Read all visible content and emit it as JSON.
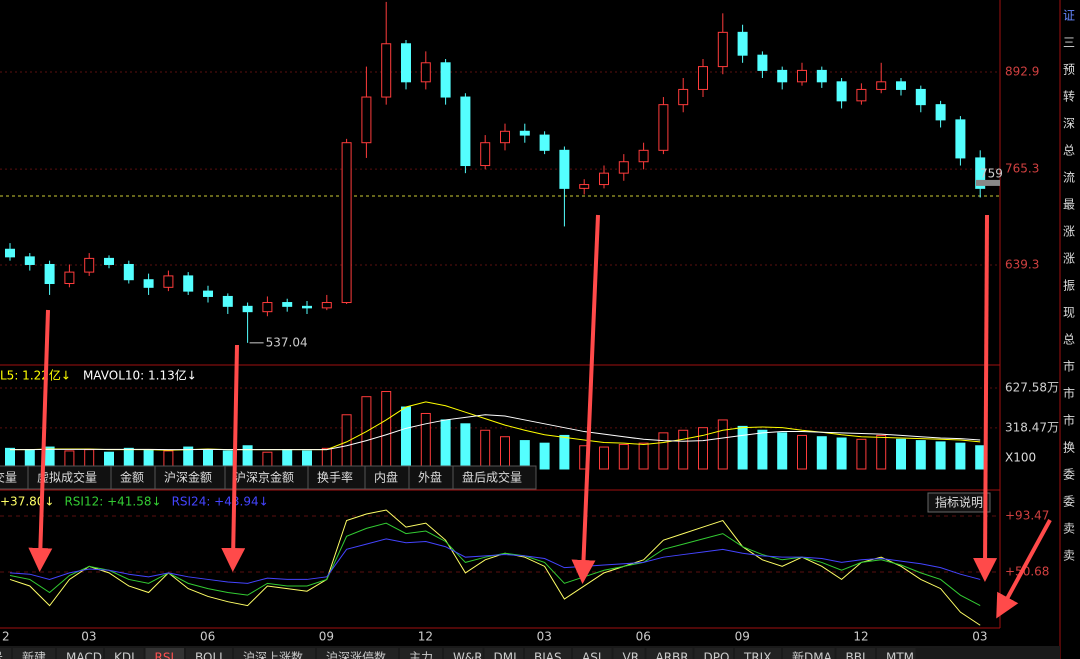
{
  "chart_data": [
    {
      "type": "candlestick",
      "open": [
        660,
        650,
        640,
        615,
        630,
        648,
        640,
        620,
        610,
        625,
        605,
        598,
        585,
        578,
        590,
        585,
        583,
        590,
        800,
        860,
        930,
        880,
        905,
        860,
        770,
        800,
        815,
        810,
        790,
        740,
        745,
        760,
        775,
        790,
        850,
        870,
        900,
        945,
        915,
        895,
        880,
        895,
        880,
        855,
        870,
        880,
        870,
        850,
        830,
        780
      ],
      "high": [
        668,
        655,
        645,
        640,
        655,
        652,
        645,
        628,
        632,
        630,
        612,
        602,
        590,
        598,
        595,
        592,
        600,
        805,
        900,
        985,
        935,
        920,
        910,
        865,
        810,
        825,
        825,
        815,
        795,
        752,
        770,
        785,
        800,
        860,
        885,
        910,
        970,
        955,
        920,
        900,
        905,
        900,
        885,
        878,
        905,
        885,
        875,
        855,
        835,
        790
      ],
      "low": [
        645,
        632,
        600,
        610,
        625,
        635,
        615,
        600,
        605,
        600,
        590,
        575,
        537.04,
        572,
        578,
        575,
        580,
        588,
        780,
        850,
        870,
        870,
        850,
        760,
        765,
        790,
        800,
        785,
        690,
        732,
        740,
        750,
        765,
        785,
        840,
        860,
        890,
        905,
        885,
        870,
        875,
        872,
        845,
        850,
        865,
        862,
        840,
        820,
        770,
        728
      ],
      "close": [
        650,
        640,
        615,
        630,
        648,
        640,
        620,
        610,
        625,
        605,
        598,
        585,
        578,
        590,
        585,
        583,
        590,
        800,
        860,
        930,
        880,
        905,
        860,
        770,
        800,
        815,
        810,
        790,
        740,
        745,
        760,
        775,
        790,
        850,
        870,
        900,
        945,
        915,
        895,
        880,
        895,
        880,
        855,
        870,
        880,
        870,
        850,
        830,
        780,
        740
      ],
      "ylim": [
        514.5,
        987.5
      ],
      "yticks": [
        892.9,
        765.3,
        639.3
      ],
      "reference": 730,
      "last_price": 759,
      "up_color": "#ff3c3c",
      "down_color": "#54ffff"
    },
    {
      "type": "bar",
      "values": [
        160,
        150,
        170,
        140,
        150,
        130,
        160,
        150,
        140,
        170,
        150,
        140,
        180,
        130,
        150,
        140,
        160,
        420,
        560,
        600,
        480,
        430,
        380,
        350,
        300,
        250,
        220,
        200,
        260,
        180,
        170,
        190,
        200,
        280,
        300,
        320,
        380,
        330,
        300,
        280,
        260,
        250,
        240,
        230,
        260,
        230,
        220,
        210,
        200,
        180
      ],
      "series": [
        {
          "legend": "L5: 1.22亿↓",
          "color": "#ffff00",
          "values": [
            150,
            150,
            155,
            155,
            155,
            150,
            150,
            150,
            145,
            150,
            155,
            150,
            150,
            150,
            150,
            150,
            150,
            210,
            290,
            380,
            480,
            520,
            490,
            440,
            390,
            340,
            300,
            265,
            245,
            225,
            205,
            200,
            190,
            205,
            230,
            260,
            300,
            320,
            325,
            320,
            300,
            285,
            265,
            250,
            245,
            240,
            235,
            230,
            225,
            210
          ]
        },
        {
          "legend": "MAVOL10: 1.13亿↓",
          "color": "#ffffff",
          "values": [
            150,
            150,
            152,
            152,
            152,
            152,
            152,
            152,
            150,
            150,
            152,
            150,
            150,
            150,
            150,
            150,
            150,
            180,
            220,
            265,
            315,
            350,
            380,
            400,
            420,
            410,
            380,
            350,
            320,
            290,
            270,
            250,
            230,
            220,
            215,
            220,
            240,
            260,
            280,
            290,
            290,
            285,
            280,
            275,
            270,
            260,
            250,
            240,
            235,
            225
          ]
        }
      ],
      "ylim": [
        0,
        766.7
      ],
      "yticks": [
        {
          "value": 627.58,
          "label": "627.58万"
        },
        {
          "value": 318.47,
          "label": "318.47万"
        }
      ],
      "unit": "X100"
    },
    {
      "type": "line",
      "categories": [
        "2",
        null,
        null,
        null,
        "03",
        null,
        null,
        null,
        null,
        null,
        "06",
        null,
        null,
        null,
        null,
        null,
        "09",
        null,
        null,
        null,
        null,
        "12",
        null,
        null,
        null,
        null,
        null,
        "03",
        null,
        null,
        null,
        null,
        "06",
        null,
        null,
        null,
        null,
        "09",
        null,
        null,
        null,
        null,
        null,
        "12",
        null,
        null,
        null,
        null,
        null,
        "03"
      ],
      "series": [
        {
          "legend": "+37.80↓",
          "color": "#ffff66",
          "values": [
            45,
            40,
            25,
            45,
            55,
            50,
            40,
            35,
            50,
            38,
            32,
            28,
            25,
            40,
            38,
            36,
            45,
            90,
            95,
            98,
            85,
            88,
            75,
            50,
            60,
            65,
            62,
            55,
            30,
            40,
            50,
            55,
            60,
            75,
            80,
            85,
            90,
            70,
            60,
            55,
            62,
            55,
            45,
            58,
            62,
            55,
            45,
            38,
            20,
            10
          ]
        },
        {
          "legend": "RSI12: +41.58↓",
          "color": "#33cc33",
          "values": [
            48,
            45,
            35,
            48,
            55,
            52,
            45,
            42,
            50,
            42,
            38,
            35,
            33,
            42,
            40,
            40,
            45,
            78,
            84,
            88,
            80,
            82,
            74,
            58,
            62,
            65,
            63,
            58,
            42,
            47,
            52,
            55,
            58,
            68,
            72,
            76,
            80,
            70,
            64,
            60,
            62,
            58,
            52,
            58,
            60,
            56,
            50,
            45,
            33,
            25
          ]
        },
        {
          "legend": "RSI24: +43.94↓",
          "color": "#4444ff",
          "values": [
            50,
            49,
            45,
            50,
            53,
            52,
            49,
            47,
            50,
            47,
            45,
            43,
            42,
            46,
            45,
            45,
            47,
            68,
            72,
            76,
            73,
            74,
            70,
            62,
            63,
            64,
            63,
            61,
            54,
            55,
            56,
            57,
            58,
            62,
            64,
            66,
            68,
            65,
            63,
            62,
            62,
            61,
            58,
            60,
            61,
            59,
            57,
            54,
            49,
            45
          ]
        }
      ],
      "ylim": [
        7.9,
        109.5
      ],
      "yticks": [
        {
          "value": 93.47,
          "label": "+93.47"
        },
        {
          "value": 50.68,
          "label": "+50.68"
        }
      ]
    }
  ],
  "ui": {
    "volume_tabs": [
      "交量",
      "虚拟成交量",
      "金额",
      "沪深金额",
      "沪深京金额",
      "换手率",
      "内盘",
      "外盘",
      "盘后成交量"
    ],
    "bottom_tabs": [
      "号",
      "新建",
      "MACD",
      "KDJ",
      "RSI",
      "BOLL",
      "沪深上涨数",
      "沪深涨停数",
      "主力",
      "W&R",
      "DMI",
      "BIAS",
      "ASI",
      "VR",
      "ARBR",
      "DPO",
      "TRIX",
      "新DMA",
      "BBI",
      "MTM"
    ],
    "rsi_button": "指标说明",
    "side_chars": [
      "证",
      "三",
      "预",
      "转",
      "深",
      "总",
      "流",
      "最",
      "涨",
      "涨",
      "振",
      "现",
      "总",
      "市",
      "市",
      "市",
      "换",
      "委",
      "委",
      "卖",
      "卖"
    ]
  }
}
